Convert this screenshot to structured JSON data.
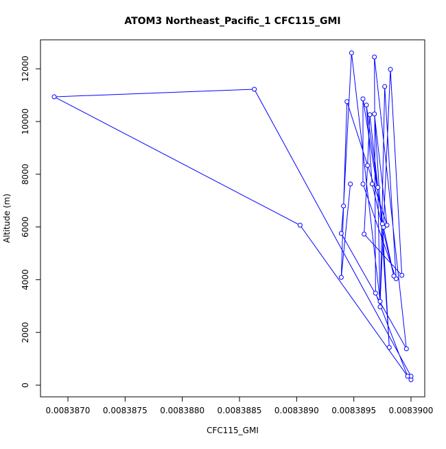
{
  "chart_data": {
    "type": "line",
    "title": "ATOM3 Northeast_Pacific_1 CFC115_GMI",
    "xlabel": "CFC115_GMI",
    "ylabel": "Altitude (m)",
    "color": "#0000ff",
    "markers": true,
    "x": [
      0.00839,
      0.00839,
      0.00838863,
      0.00838688,
      0.00838903,
      0.00838997,
      0.00838969,
      0.00838968,
      0.00838996,
      0.00838939,
      0.00838941,
      0.00838948,
      0.00838973,
      0.00838982,
      0.00838992,
      0.00838959,
      0.00838962,
      0.00838964,
      0.00838971,
      0.00838973,
      0.00838977,
      0.00838987,
      0.00838958,
      0.00838958,
      0.00838976,
      0.00838985,
      0.00838966,
      0.00838961,
      0.00838975,
      0.00838981,
      0.00838968,
      0.00838979,
      0.00838944,
      0.00838939,
      0.00838947
    ],
    "values": [
      208,
      339,
      11223,
      10937,
      6067,
      339,
      3489,
      12447,
      1380,
      5755,
      6796,
      12603,
      3177,
      11978,
      4166,
      5729,
      8333,
      10260,
      7500,
      2969,
      11327,
      4036,
      7630,
      10859,
      5989,
      4140,
      7630,
      10624,
      6119,
      1432,
      10286,
      6067,
      10755,
      4088,
      7630
    ],
    "xlim": [
      0.00838676,
      0.00839012
    ],
    "ylim": [
      -443,
      13099
    ],
    "xticks": [
      {
        "value": 0.008387,
        "label": "0.0083870"
      },
      {
        "value": 0.0083875,
        "label": "0.0083875"
      },
      {
        "value": 0.008388,
        "label": "0.0083880"
      },
      {
        "value": 0.0083885,
        "label": "0.0083885"
      },
      {
        "value": 0.008389,
        "label": "0.0083890"
      },
      {
        "value": 0.0083895,
        "label": "0.0083895"
      },
      {
        "value": 0.00839,
        "label": "0.0083900"
      }
    ],
    "yticks": [
      0,
      2000,
      4000,
      6000,
      8000,
      10000,
      12000
    ]
  }
}
